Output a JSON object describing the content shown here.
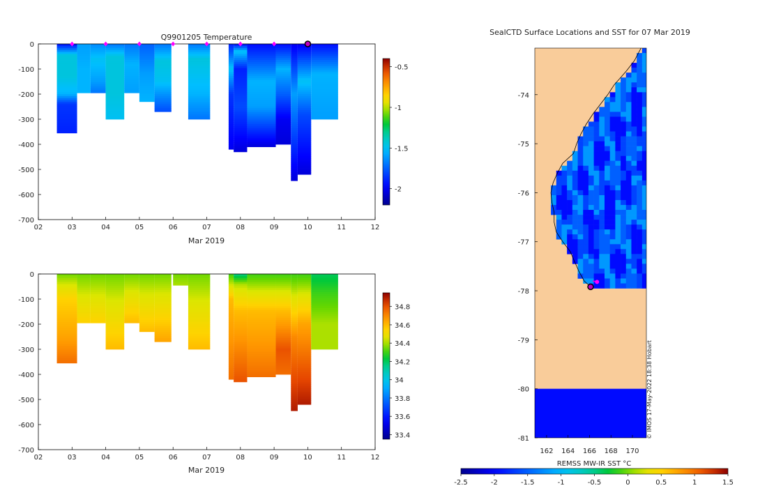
{
  "chart_data": [
    {
      "id": "temperature-section",
      "type": "heatmap",
      "title": "Q9901205  Temperature",
      "xlabel": "Mar 2019",
      "ylabel": "",
      "x_ticks": [
        "02",
        "03",
        "04",
        "05",
        "06",
        "07",
        "08",
        "09",
        "10",
        "11",
        "12"
      ],
      "xlim": [
        2,
        12
      ],
      "y_ticks": [
        0,
        -100,
        -200,
        -300,
        -400,
        -500,
        -600,
        -700
      ],
      "ylim": [
        -700,
        0
      ],
      "colorbar": {
        "ticks": [
          -0.5,
          -1,
          -1.5,
          -2
        ],
        "range": [
          -2.2,
          -0.4
        ]
      },
      "marker_days": [
        3,
        4,
        5,
        6,
        7,
        8,
        9
      ],
      "current_profile_day": 10,
      "profiles": [
        {
          "x": 2.55,
          "w": 0.6,
          "depth": 355,
          "values": [
            [
              0,
              -1.95
            ],
            [
              45,
              -1.45
            ],
            [
              130,
              -1.45
            ],
            [
              200,
              -1.55
            ],
            [
              240,
              -1.85
            ],
            [
              355,
              -1.9
            ]
          ]
        },
        {
          "x": 3.15,
          "w": 0.4,
          "depth": 195,
          "values": [
            [
              0,
              -1.6
            ],
            [
              100,
              -1.55
            ],
            [
              195,
              -1.55
            ]
          ]
        },
        {
          "x": 3.55,
          "w": 0.45,
          "depth": 195,
          "values": [
            [
              0,
              -1.65
            ],
            [
              60,
              -1.5
            ],
            [
              150,
              -1.6
            ],
            [
              195,
              -1.7
            ]
          ]
        },
        {
          "x": 4.0,
          "w": 0.55,
          "depth": 300,
          "values": [
            [
              0,
              -1.7
            ],
            [
              50,
              -1.45
            ],
            [
              200,
              -1.45
            ],
            [
              300,
              -1.5
            ]
          ]
        },
        {
          "x": 4.55,
          "w": 0.45,
          "depth": 195,
          "values": [
            [
              0,
              -1.7
            ],
            [
              80,
              -1.55
            ],
            [
              195,
              -1.6
            ]
          ]
        },
        {
          "x": 5.0,
          "w": 0.45,
          "depth": 230,
          "values": [
            [
              0,
              -1.75
            ],
            [
              120,
              -1.6
            ],
            [
              230,
              -1.55
            ]
          ]
        },
        {
          "x": 5.45,
          "w": 0.5,
          "depth": 270,
          "values": [
            [
              0,
              -1.7
            ],
            [
              70,
              -1.45
            ],
            [
              150,
              -1.5
            ],
            [
              270,
              -1.8
            ]
          ]
        },
        {
          "x": 6.45,
          "w": 0.65,
          "depth": 300,
          "values": [
            [
              0,
              -1.7
            ],
            [
              60,
              -1.45
            ],
            [
              200,
              -1.55
            ],
            [
              300,
              -1.7
            ]
          ]
        },
        {
          "x": 7.65,
          "w": 0.15,
          "depth": 420,
          "values": [
            [
              0,
              -1.9
            ],
            [
              100,
              -1.5
            ],
            [
              200,
              -1.85
            ],
            [
              420,
              -2.0
            ]
          ]
        },
        {
          "x": 7.8,
          "w": 0.4,
          "depth": 430,
          "values": [
            [
              0,
              -1.95
            ],
            [
              30,
              -1.5
            ],
            [
              100,
              -1.9
            ],
            [
              250,
              -1.8
            ],
            [
              430,
              -2.05
            ]
          ]
        },
        {
          "x": 8.2,
          "w": 0.85,
          "depth": 410,
          "values": [
            [
              0,
              -1.95
            ],
            [
              150,
              -1.55
            ],
            [
              250,
              -1.6
            ],
            [
              410,
              -2.05
            ]
          ]
        },
        {
          "x": 9.05,
          "w": 0.45,
          "depth": 400,
          "values": [
            [
              0,
              -1.95
            ],
            [
              100,
              -1.55
            ],
            [
              200,
              -1.75
            ],
            [
              300,
              -2.0
            ],
            [
              400,
              -2.05
            ]
          ]
        },
        {
          "x": 9.5,
          "w": 0.2,
          "depth": 545,
          "values": [
            [
              0,
              -2.0
            ],
            [
              200,
              -1.6
            ],
            [
              545,
              -2.05
            ]
          ]
        },
        {
          "x": 9.7,
          "w": 0.4,
          "depth": 520,
          "values": [
            [
              0,
              -2.0
            ],
            [
              150,
              -1.5
            ],
            [
              280,
              -1.8
            ],
            [
              520,
              -2.05
            ]
          ]
        },
        {
          "x": 10.1,
          "w": 0.8,
          "depth": 300,
          "values": [
            [
              0,
              -1.95
            ],
            [
              120,
              -1.55
            ],
            [
              300,
              -1.6
            ]
          ]
        }
      ]
    },
    {
      "id": "salinity-section",
      "type": "heatmap",
      "title": "",
      "xlabel": "Mar 2019",
      "ylabel": "",
      "x_ticks": [
        "02",
        "03",
        "04",
        "05",
        "06",
        "07",
        "08",
        "09",
        "10",
        "11",
        "12"
      ],
      "xlim": [
        2,
        12
      ],
      "y_ticks": [
        0,
        -100,
        -200,
        -300,
        -400,
        -500,
        -600,
        -700
      ],
      "ylim": [
        -700,
        0
      ],
      "colorbar": {
        "ticks": [
          34.8,
          34.6,
          34.4,
          34.2,
          34,
          33.8,
          33.6,
          33.4
        ],
        "range": [
          33.35,
          34.95
        ]
      },
      "profiles": [
        {
          "x": 2.55,
          "w": 0.6,
          "depth": 355,
          "values": [
            [
              0,
              34.35
            ],
            [
              100,
              34.55
            ],
            [
              250,
              34.65
            ],
            [
              355,
              34.75
            ]
          ]
        },
        {
          "x": 3.15,
          "w": 0.4,
          "depth": 195,
          "values": [
            [
              0,
              34.35
            ],
            [
              195,
              34.55
            ]
          ]
        },
        {
          "x": 3.55,
          "w": 0.45,
          "depth": 195,
          "values": [
            [
              0,
              34.35
            ],
            [
              195,
              34.55
            ]
          ]
        },
        {
          "x": 4.0,
          "w": 0.55,
          "depth": 300,
          "values": [
            [
              0,
              34.35
            ],
            [
              300,
              34.6
            ]
          ]
        },
        {
          "x": 4.55,
          "w": 0.45,
          "depth": 195,
          "values": [
            [
              0,
              34.35
            ],
            [
              195,
              34.6
            ]
          ]
        },
        {
          "x": 5.0,
          "w": 0.45,
          "depth": 230,
          "values": [
            [
              0,
              34.35
            ],
            [
              230,
              34.6
            ]
          ]
        },
        {
          "x": 5.45,
          "w": 0.5,
          "depth": 270,
          "values": [
            [
              0,
              34.35
            ],
            [
              270,
              34.65
            ]
          ]
        },
        {
          "x": 6.0,
          "w": 0.45,
          "depth": 45,
          "values": [
            [
              0,
              34.35
            ],
            [
              45,
              34.4
            ]
          ]
        },
        {
          "x": 6.45,
          "w": 0.65,
          "depth": 300,
          "values": [
            [
              0,
              34.35
            ],
            [
              300,
              34.6
            ]
          ]
        },
        {
          "x": 7.65,
          "w": 0.15,
          "depth": 420,
          "values": [
            [
              0,
              34.3
            ],
            [
              100,
              34.6
            ],
            [
              420,
              34.75
            ]
          ]
        },
        {
          "x": 7.8,
          "w": 0.4,
          "depth": 430,
          "values": [
            [
              0,
              34.15
            ],
            [
              40,
              34.4
            ],
            [
              150,
              34.6
            ],
            [
              430,
              34.8
            ]
          ]
        },
        {
          "x": 8.2,
          "w": 0.85,
          "depth": 410,
          "values": [
            [
              0,
              34.3
            ],
            [
              150,
              34.6
            ],
            [
              410,
              34.75
            ]
          ]
        },
        {
          "x": 9.05,
          "w": 0.45,
          "depth": 400,
          "values": [
            [
              0,
              34.3
            ],
            [
              150,
              34.6
            ],
            [
              300,
              34.8
            ],
            [
              400,
              34.75
            ]
          ]
        },
        {
          "x": 9.5,
          "w": 0.2,
          "depth": 545,
          "values": [
            [
              0,
              34.3
            ],
            [
              250,
              34.7
            ],
            [
              545,
              34.9
            ]
          ]
        },
        {
          "x": 9.7,
          "w": 0.4,
          "depth": 520,
          "values": [
            [
              0,
              34.3
            ],
            [
              200,
              34.65
            ],
            [
              520,
              34.9
            ]
          ]
        },
        {
          "x": 10.1,
          "w": 0.8,
          "depth": 300,
          "values": [
            [
              0,
              34.2
            ],
            [
              80,
              34.3
            ],
            [
              200,
              34.4
            ],
            [
              300,
              34.4
            ]
          ]
        }
      ]
    },
    {
      "id": "sst-map",
      "type": "heatmap",
      "title": "SealCTD Surface Locations and SST for 07 Mar 2019",
      "xlabel": "",
      "x_ticks": [
        162,
        164,
        166,
        168,
        170
      ],
      "xlim": [
        160.9,
        171.3
      ],
      "y_ticks": [
        -74,
        -75,
        -76,
        -77,
        -78,
        -79,
        -80,
        -81
      ],
      "ylim": [
        -81.0,
        -73.05
      ],
      "colorbar_label": "REMSS MW-IR SST °C",
      "colorbar_ticks": [
        -2.5,
        -2,
        -1.5,
        -1,
        -0.5,
        0,
        0.5,
        1,
        1.5
      ],
      "colorbar_range": [
        -2.5,
        1.5
      ],
      "land_color": "#f9cc9a",
      "coast_lat": [
        -73.05,
        -73.3,
        -73.5,
        -73.65,
        -73.8,
        -74.0,
        -74.2,
        -74.4,
        -74.6,
        -74.8,
        -75.0,
        -75.2,
        -75.4,
        -75.6,
        -75.8,
        -76.0,
        -76.2,
        -76.4,
        -76.6,
        -76.8,
        -77.0,
        -77.2,
        -77.4,
        -77.6,
        -77.8,
        -77.92
      ],
      "coast_lon": [
        170.8,
        170.2,
        169.5,
        168.9,
        168.3,
        167.7,
        167.0,
        166.3,
        165.7,
        165.2,
        164.8,
        164.5,
        163.5,
        163.0,
        162.6,
        162.4,
        162.5,
        162.7,
        162.7,
        162.9,
        163.5,
        164.2,
        164.6,
        165.0,
        165.5,
        166.1
      ],
      "track": [
        [
          166.3,
          -77.8
        ],
        [
          166.7,
          -77.82
        ]
      ],
      "current_location": [
        166.1,
        -77.92
      ],
      "watermark": "© IMOS 17-May-2022 18:38 Hobart"
    }
  ]
}
